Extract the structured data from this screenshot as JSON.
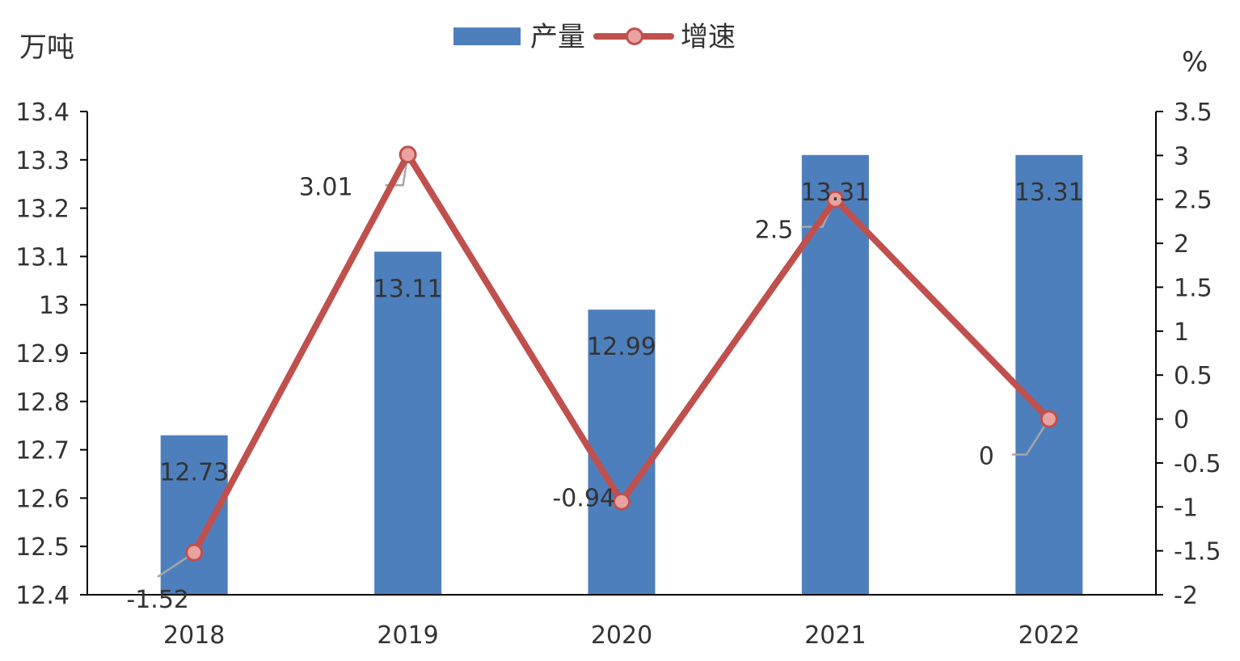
{
  "chart_data": {
    "type": "bar+line",
    "categories": [
      "2018",
      "2019",
      "2020",
      "2021",
      "2022"
    ],
    "series": [
      {
        "name": "产量",
        "type": "bar",
        "axis": "left",
        "values": [
          12.73,
          13.11,
          12.99,
          13.31,
          13.31
        ],
        "labels": [
          "12.73",
          "13.11",
          "12.99",
          "13.31",
          "13.31"
        ],
        "color": "#4e7fbd"
      },
      {
        "name": "增速",
        "type": "line",
        "axis": "right",
        "values": [
          -1.52,
          3.01,
          -0.94,
          2.5,
          0
        ],
        "labels": [
          "-1.52",
          "3.01",
          "-0.94",
          "2.5",
          "0"
        ],
        "color": "#c0504d",
        "marker_fill": "#e8a3a1"
      }
    ],
    "y_left": {
      "label": "万吨",
      "lim": [
        12.4,
        13.4
      ],
      "ticks": [
        "12.4",
        "12.5",
        "12.6",
        "12.7",
        "12.8",
        "12.9",
        "13",
        "13.1",
        "13.2",
        "13.3",
        "13.4"
      ]
    },
    "y_right": {
      "label": "%",
      "lim": [
        -2,
        3.5
      ],
      "ticks": [
        "-2",
        "-1.5",
        "-1",
        "-0.5",
        "0",
        "0.5",
        "1",
        "1.5",
        "2",
        "2.5",
        "3",
        "3.5"
      ]
    },
    "legend": "top-center",
    "grid": false
  }
}
